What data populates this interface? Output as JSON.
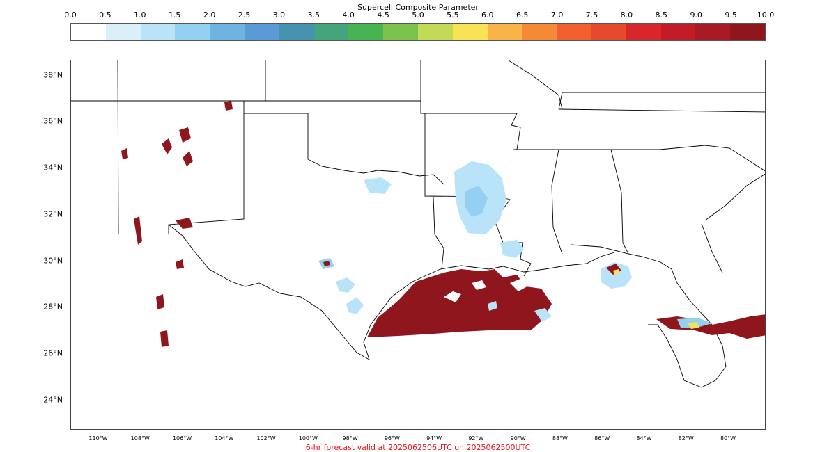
{
  "colorbar": {
    "title": "Supercell Composite Parameter",
    "ticks": [
      "0.0",
      "0.5",
      "1.0",
      "1.5",
      "2.0",
      "2.5",
      "3.0",
      "3.5",
      "4.0",
      "4.5",
      "5.0",
      "5.5",
      "6.0",
      "6.5",
      "7.0",
      "7.5",
      "8.0",
      "8.5",
      "9.0",
      "9.5",
      "10.0"
    ],
    "colors": [
      "#ffffff",
      "#dbeffb",
      "#b9e3f8",
      "#93d0f2",
      "#6fb3e3",
      "#5a9bd6",
      "#4593b0",
      "#44a57d",
      "#46b450",
      "#7cc34d",
      "#c2d956",
      "#f8e354",
      "#f8b547",
      "#f58a36",
      "#f0612d",
      "#e54a2d",
      "#d8262b",
      "#c21c27",
      "#a91b24",
      "#8f161d"
    ]
  },
  "map": {
    "lat_labels": [
      {
        "lat": 38,
        "text": "38°N"
      },
      {
        "lat": 36,
        "text": "36°N"
      },
      {
        "lat": 34,
        "text": "34°N"
      },
      {
        "lat": 32,
        "text": "32°N"
      },
      {
        "lat": 30,
        "text": "30°N"
      },
      {
        "lat": 28,
        "text": "28°N"
      },
      {
        "lat": 26,
        "text": "26°N"
      },
      {
        "lat": 24,
        "text": "24°N"
      }
    ],
    "lon_labels": [
      {
        "lon": -110,
        "text": "110°W"
      },
      {
        "lon": -108,
        "text": "108°W"
      },
      {
        "lon": -106,
        "text": "106°W"
      },
      {
        "lon": -104,
        "text": "104°W"
      },
      {
        "lon": -102,
        "text": "102°W"
      },
      {
        "lon": -100,
        "text": "100°W"
      },
      {
        "lon": -98,
        "text": "98°W"
      },
      {
        "lon": -96,
        "text": "96°W"
      },
      {
        "lon": -94,
        "text": "94°W"
      },
      {
        "lon": -92,
        "text": "92°W"
      },
      {
        "lon": -90,
        "text": "90°W"
      },
      {
        "lon": -88,
        "text": "88°W"
      },
      {
        "lon": -86,
        "text": "86°W"
      },
      {
        "lon": -84,
        "text": "84°W"
      },
      {
        "lon": -82,
        "text": "82°W"
      },
      {
        "lon": -80,
        "text": "80°W"
      }
    ]
  },
  "footer": {
    "text": "6-hr forecast valid at 2025062506UTC on 2025062500UTC",
    "color": "#e8141a"
  }
}
